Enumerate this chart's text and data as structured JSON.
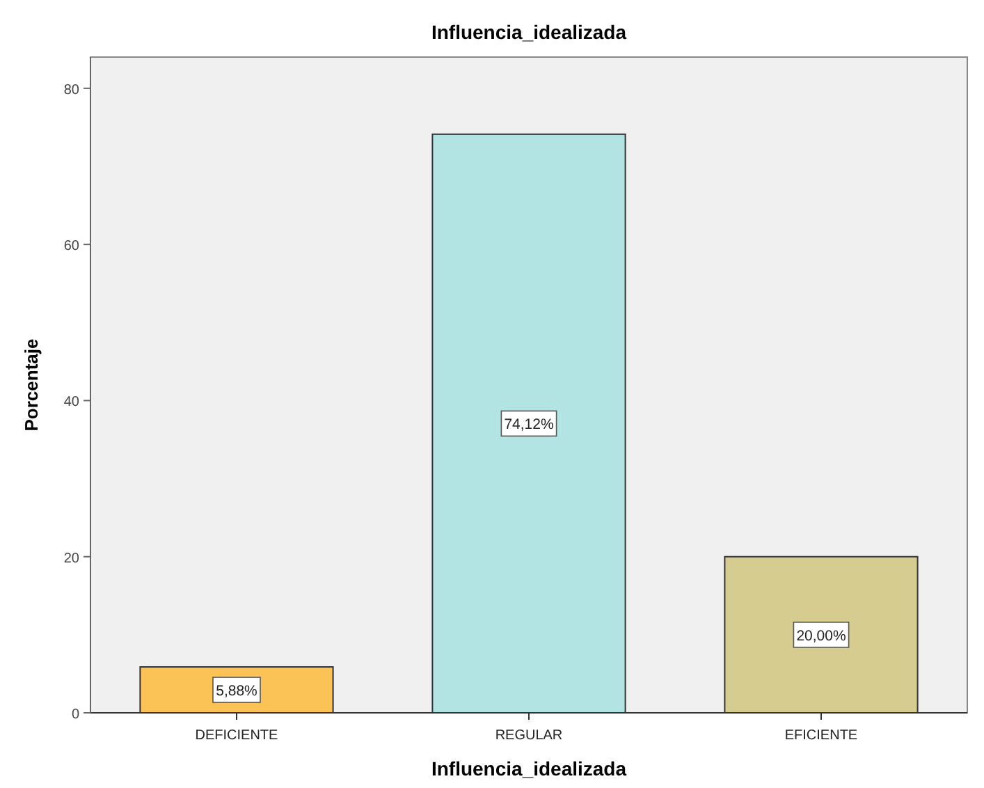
{
  "chart_data": {
    "type": "bar",
    "title": "Influencia_idealizada",
    "xlabel": "Influencia_idealizada",
    "ylabel": "Porcentaje",
    "categories": [
      "DEFICIENTE",
      "REGULAR",
      "EFICIENTE"
    ],
    "values": [
      5.88,
      74.12,
      20.0
    ],
    "colors": [
      "#fbc256",
      "#b2e4e4",
      "#d6cc90"
    ],
    "value_labels": [
      "5,88%",
      "74,12%",
      "20,00%"
    ],
    "ylim": [
      0,
      84
    ],
    "yticks": [
      0,
      20,
      40,
      60,
      80
    ],
    "grid": false
  }
}
